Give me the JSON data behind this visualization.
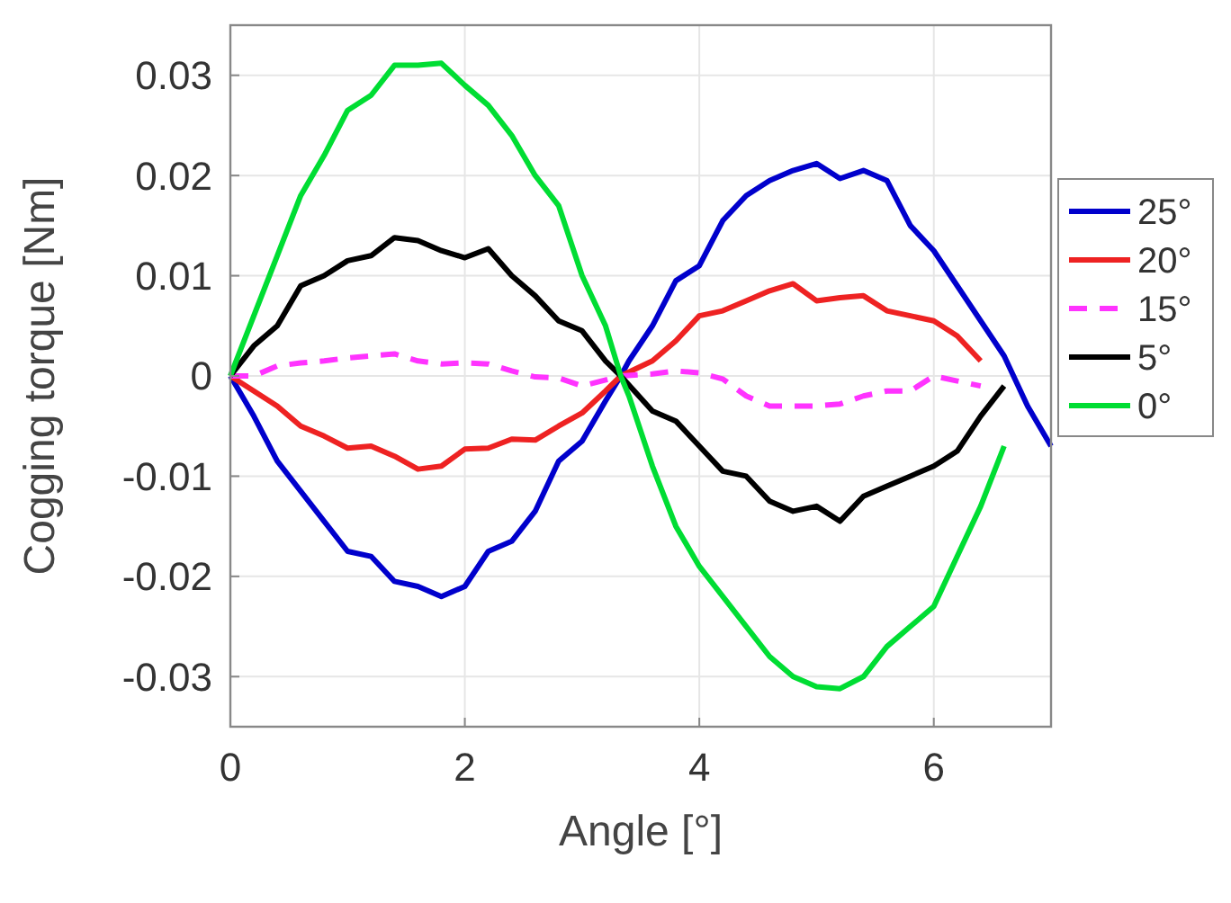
{
  "chart_data": {
    "type": "line",
    "xlabel": "Angle [°]",
    "ylabel": "Cogging torque [Nm]",
    "xlim": [
      0,
      7
    ],
    "ylim": [
      -0.035,
      0.035
    ],
    "xticks": [
      0,
      2,
      4,
      6
    ],
    "yticks": [
      -0.03,
      -0.02,
      -0.01,
      0,
      0.01,
      0.02,
      0.03
    ],
    "grid": true,
    "legend": "right",
    "marker": "none",
    "series": [
      {
        "name": "25°",
        "color": "#0000cc",
        "line_style": "solid",
        "x": [
          0,
          0.2,
          0.4,
          0.6,
          0.8,
          1.0,
          1.2,
          1.4,
          1.6,
          1.8,
          2.0,
          2.2,
          2.4,
          2.6,
          2.8,
          3.0,
          3.2,
          3.33,
          3.4,
          3.6,
          3.8,
          4.0,
          4.2,
          4.4,
          4.6,
          4.8,
          5.0,
          5.2,
          5.4,
          5.6,
          5.8,
          6.0,
          6.2,
          6.4,
          6.6,
          6.8,
          7.0
        ],
        "values": [
          0,
          -0.004,
          -0.0085,
          -0.0115,
          -0.0145,
          -0.0175,
          -0.018,
          -0.0205,
          -0.021,
          -0.022,
          -0.021,
          -0.0175,
          -0.0165,
          -0.0135,
          -0.0085,
          -0.0065,
          -0.0025,
          0,
          0.0015,
          0.005,
          0.0095,
          0.011,
          0.0155,
          0.018,
          0.0195,
          0.0205,
          0.0212,
          0.0197,
          0.0205,
          0.0195,
          0.015,
          0.0125,
          0.009,
          0.0055,
          0.002,
          -0.003,
          -0.007
        ]
      },
      {
        "name": "20°",
        "color": "#ee2222",
        "line_style": "solid",
        "x": [
          0,
          0.2,
          0.4,
          0.6,
          0.8,
          1.0,
          1.2,
          1.4,
          1.6,
          1.8,
          2.0,
          2.2,
          2.4,
          2.6,
          2.8,
          3.0,
          3.2,
          3.33,
          3.6,
          3.8,
          4.0,
          4.2,
          4.4,
          4.6,
          4.8,
          5.0,
          5.2,
          5.4,
          5.6,
          5.8,
          6.0,
          6.2,
          6.4
        ],
        "values": [
          0,
          -0.0015,
          -0.003,
          -0.005,
          -0.006,
          -0.0072,
          -0.007,
          -0.008,
          -0.0093,
          -0.009,
          -0.0073,
          -0.0072,
          -0.0063,
          -0.0064,
          -0.005,
          -0.0037,
          -0.0015,
          0,
          0.0015,
          0.0035,
          0.006,
          0.0065,
          0.0075,
          0.0085,
          0.0092,
          0.0075,
          0.0078,
          0.008,
          0.0065,
          0.006,
          0.0055,
          0.004,
          0.0015
        ]
      },
      {
        "name": "15°",
        "color": "#ff33ff",
        "line_style": "dashed",
        "x": [
          0,
          0.2,
          0.4,
          0.6,
          0.8,
          1.0,
          1.2,
          1.4,
          1.6,
          1.8,
          2.0,
          2.2,
          2.4,
          2.6,
          2.8,
          3.0,
          3.33,
          3.6,
          3.8,
          4.0,
          4.2,
          4.4,
          4.6,
          4.8,
          5.0,
          5.2,
          5.4,
          5.6,
          5.8,
          6.0,
          6.2,
          6.4
        ],
        "values": [
          0,
          0,
          0.001,
          0.0013,
          0.0015,
          0.0018,
          0.002,
          0.0022,
          0.0015,
          0.0012,
          0.0013,
          0.0012,
          0.0005,
          -0.0001,
          -0.0002,
          -0.001,
          0,
          0.0002,
          0.0005,
          0.0003,
          -0.0003,
          -0.002,
          -0.003,
          -0.003,
          -0.003,
          -0.0028,
          -0.002,
          -0.0015,
          -0.0015,
          0,
          -0.0005,
          -0.001
        ]
      },
      {
        "name": "5°",
        "color": "#000000",
        "line_style": "solid",
        "x": [
          0,
          0.2,
          0.4,
          0.6,
          0.8,
          1.0,
          1.2,
          1.4,
          1.6,
          1.8,
          2.0,
          2.2,
          2.4,
          2.6,
          2.8,
          3.0,
          3.2,
          3.33,
          3.6,
          3.8,
          4.0,
          4.2,
          4.4,
          4.6,
          4.8,
          5.0,
          5.2,
          5.4,
          5.6,
          5.8,
          6.0,
          6.2,
          6.4,
          6.6
        ],
        "values": [
          0,
          0.003,
          0.005,
          0.009,
          0.01,
          0.0115,
          0.012,
          0.0138,
          0.0135,
          0.0125,
          0.0118,
          0.0127,
          0.01,
          0.008,
          0.0055,
          0.0045,
          0.0015,
          0,
          -0.0035,
          -0.0045,
          -0.007,
          -0.0095,
          -0.01,
          -0.0125,
          -0.0135,
          -0.013,
          -0.0145,
          -0.012,
          -0.011,
          -0.01,
          -0.009,
          -0.0075,
          -0.004,
          -0.001
        ]
      },
      {
        "name": "0°",
        "color": "#00dd33",
        "line_style": "solid",
        "x": [
          0,
          0.2,
          0.4,
          0.6,
          0.8,
          1.0,
          1.2,
          1.4,
          1.6,
          1.8,
          2.0,
          2.2,
          2.4,
          2.6,
          2.8,
          3.0,
          3.2,
          3.33,
          3.4,
          3.6,
          3.8,
          4.0,
          4.2,
          4.4,
          4.6,
          4.8,
          5.0,
          5.2,
          5.4,
          5.6,
          5.8,
          6.0,
          6.2,
          6.4,
          6.6
        ],
        "values": [
          0,
          0.006,
          0.012,
          0.018,
          0.022,
          0.0265,
          0.028,
          0.031,
          0.031,
          0.0312,
          0.029,
          0.027,
          0.024,
          0.02,
          0.017,
          0.01,
          0.005,
          0,
          -0.002,
          -0.009,
          -0.015,
          -0.019,
          -0.022,
          -0.025,
          -0.028,
          -0.03,
          -0.031,
          -0.0312,
          -0.03,
          -0.027,
          -0.025,
          -0.023,
          -0.018,
          -0.013,
          -0.007
        ]
      }
    ]
  }
}
